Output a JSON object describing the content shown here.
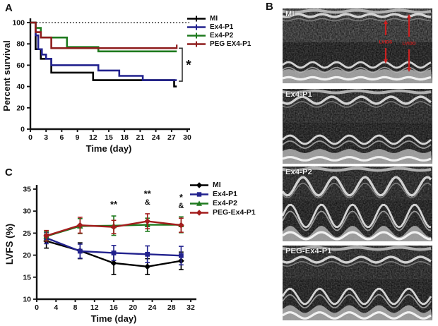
{
  "figure_background": "#ffffff",
  "panels": {
    "A": {
      "label": "A"
    },
    "B": {
      "label": "B"
    },
    "C": {
      "label": "C"
    }
  },
  "panelB": {
    "images": [
      {
        "label": "MI",
        "annotation_color": "#cc2020",
        "annotations": [
          {
            "label": "LVIDS"
          },
          {
            "label": "LVIDD"
          }
        ]
      },
      {
        "label": "Ex4-P1",
        "annotations": []
      },
      {
        "label": "Ex4-P2",
        "annotations": []
      },
      {
        "label": "PEG-Ex4-P1",
        "annotations": []
      }
    ]
  },
  "chart_data": [
    {
      "panel": "A",
      "type": "line",
      "subtype": "kaplan-meier-step",
      "title": "",
      "xlabel": "Time (day)",
      "ylabel": "Percent survival",
      "xlim": [
        0,
        30
      ],
      "ylim": [
        0,
        100
      ],
      "xticks": [
        0,
        3,
        6,
        9,
        12,
        15,
        18,
        21,
        24,
        27,
        30
      ],
      "yticks": [
        0,
        20,
        40,
        60,
        80,
        100
      ],
      "grid": false,
      "legend_position": "right-top",
      "reference_line": {
        "y": 100,
        "style": "dotted",
        "color": "#111111"
      },
      "series": [
        {
          "name": "MI",
          "color": "#000000",
          "steps": [
            [
              0,
              100
            ],
            [
              1,
              75
            ],
            [
              2,
              66
            ],
            [
              4,
              53
            ],
            [
              12,
              46
            ],
            [
              27.5,
              40
            ]
          ],
          "end": 28
        },
        {
          "name": "Ex4-P1",
          "color": "#22228e",
          "steps": [
            [
              0,
              100
            ],
            [
              1,
              88
            ],
            [
              1.5,
              75
            ],
            [
              2.2,
              70
            ],
            [
              3,
              66
            ],
            [
              4,
              60
            ],
            [
              13,
              55
            ],
            [
              17,
              50
            ],
            [
              21.5,
              46
            ]
          ],
          "end": 28
        },
        {
          "name": "Ex4-P2",
          "color": "#1e7a1e",
          "steps": [
            [
              0,
              100
            ],
            [
              1,
              95
            ],
            [
              2,
              86
            ],
            [
              7,
              77
            ],
            [
              13,
              73
            ]
          ],
          "end": 28
        },
        {
          "name": "PEG EX4-P1",
          "color": "#8e1c1c",
          "steps": [
            [
              0,
              100
            ],
            [
              1,
              91
            ],
            [
              2,
              86
            ],
            [
              4,
              76
            ]
          ],
          "end": 28
        }
      ],
      "significance": {
        "label": "*",
        "x_day": 29,
        "from_value": 76,
        "to_value": 45
      }
    },
    {
      "panel": "C",
      "type": "line",
      "subtype": "mean-with-error-bars",
      "title": "",
      "xlabel": "Time (day)",
      "ylabel": "LVFS (%)",
      "xlim": [
        0,
        32
      ],
      "ylim": [
        10,
        35
      ],
      "xticks": [
        0,
        4,
        8,
        12,
        16,
        20,
        24,
        28,
        32
      ],
      "yticks": [
        10,
        15,
        20,
        25,
        30,
        35
      ],
      "grid": false,
      "legend_position": "right-top",
      "x": [
        2,
        9,
        16,
        23,
        30
      ],
      "series": [
        {
          "name": "MI",
          "color": "#000000",
          "marker": "diamond",
          "values": [
            23.2,
            21.0,
            18.2,
            17.4,
            18.7
          ],
          "errors": [
            1.6,
            1.8,
            2.6,
            1.8,
            2.0
          ]
        },
        {
          "name": "Ex4-P1",
          "color": "#22228e",
          "marker": "square",
          "values": [
            23.9,
            20.9,
            20.5,
            20.2,
            19.9
          ],
          "errors": [
            1.3,
            1.6,
            1.7,
            1.9,
            2.1
          ]
        },
        {
          "name": "Ex4-P2",
          "color": "#1e7a1e",
          "marker": "triangle",
          "values": [
            24.3,
            26.6,
            26.7,
            26.9,
            26.9
          ],
          "errors": [
            1.0,
            1.7,
            2.2,
            1.5,
            1.8
          ]
        },
        {
          "name": "PEG-Ex4-P1",
          "color": "#a31d1d",
          "marker": "diamond",
          "values": [
            24.4,
            26.8,
            26.4,
            27.7,
            26.8
          ],
          "errors": [
            1.2,
            1.8,
            1.5,
            1.7,
            1.6
          ]
        }
      ],
      "annotations": [
        {
          "x": 16,
          "lines": [
            "**"
          ],
          "top_value": 30.8
        },
        {
          "x": 23,
          "lines": [
            "**",
            "&"
          ],
          "top_value": 33.2
        },
        {
          "x": 30,
          "lines": [
            "*",
            "&"
          ],
          "top_value": 32.4
        }
      ]
    }
  ]
}
